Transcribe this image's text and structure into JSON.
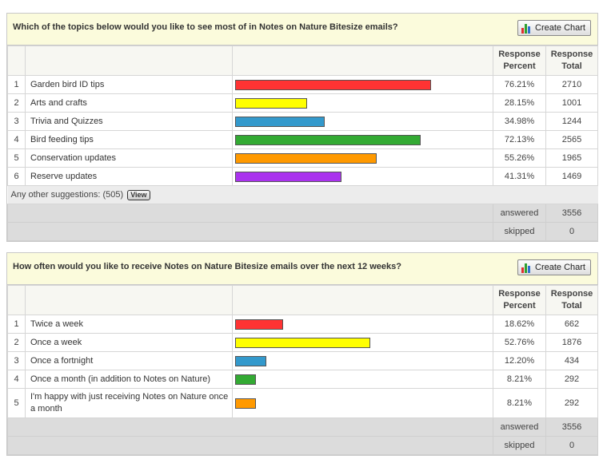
{
  "questions": [
    {
      "title": "Which of the topics below would you like to see most of in Notes on Nature Bitesize emails?",
      "create_chart_label": "Create Chart",
      "header": {
        "percent": "Response Percent",
        "total": "Response Total"
      },
      "rows": [
        {
          "index": "1",
          "label": "Garden bird ID tips",
          "percent": "76.21%",
          "total": "2710",
          "fraction": 0.7621,
          "color": "#ff3333"
        },
        {
          "index": "2",
          "label": "Arts and crafts",
          "percent": "28.15%",
          "total": "1001",
          "fraction": 0.2815,
          "color": "#ffff00"
        },
        {
          "index": "3",
          "label": "Trivia and Quizzes",
          "percent": "34.98%",
          "total": "1244",
          "fraction": 0.3498,
          "color": "#3399cc"
        },
        {
          "index": "4",
          "label": "Bird feeding tips",
          "percent": "72.13%",
          "total": "2565",
          "fraction": 0.7213,
          "color": "#33aa33"
        },
        {
          "index": "5",
          "label": "Conservation updates",
          "percent": "55.26%",
          "total": "1965",
          "fraction": 0.5526,
          "color": "#ff9900"
        },
        {
          "index": "6",
          "label": "Reserve updates",
          "percent": "41.31%",
          "total": "1469",
          "fraction": 0.4131,
          "color": "#aa33ee"
        }
      ],
      "other": {
        "text": "Any other suggestions: (505)",
        "view_label": "View"
      },
      "summary": {
        "answered_label": "answered",
        "answered": "3556",
        "skipped_label": "skipped",
        "skipped": "0"
      }
    },
    {
      "title": "How often would you like to receive Notes on Nature Bitesize emails over the next 12 weeks?",
      "create_chart_label": "Create Chart",
      "header": {
        "percent": "Response Percent",
        "total": "Response Total"
      },
      "rows": [
        {
          "index": "1",
          "label": "Twice a week",
          "percent": "18.62%",
          "total": "662",
          "fraction": 0.1862,
          "color": "#ff3333"
        },
        {
          "index": "2",
          "label": "Once a week",
          "percent": "52.76%",
          "total": "1876",
          "fraction": 0.5276,
          "color": "#ffff00"
        },
        {
          "index": "3",
          "label": "Once a fortnight",
          "percent": "12.20%",
          "total": "434",
          "fraction": 0.122,
          "color": "#3399cc"
        },
        {
          "index": "4",
          "label": "Once a month (in addition to Notes on Nature)",
          "percent": "8.21%",
          "total": "292",
          "fraction": 0.0821,
          "color": "#33aa33"
        },
        {
          "index": "5",
          "label": "I'm happy with just receiving Notes on Nature once a month",
          "percent": "8.21%",
          "total": "292",
          "fraction": 0.0821,
          "color": "#ff9900"
        }
      ],
      "summary": {
        "answered_label": "answered",
        "answered": "3556",
        "skipped_label": "skipped",
        "skipped": "0"
      }
    }
  ]
}
